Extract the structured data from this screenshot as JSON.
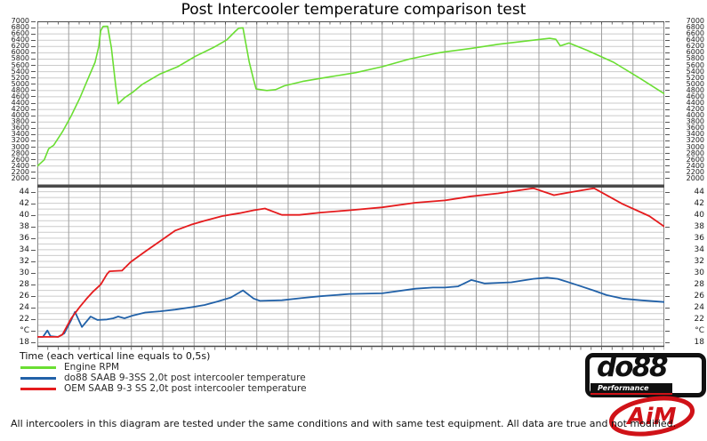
{
  "title": "Post Intercooler temperature comparison test",
  "time_axis_label": "Time (each vertical line equals to 0,5s)",
  "footnote": "All intercoolers in this diagram are tested under the same conditions and with same test equipment. All data are true and not modified.",
  "legend": {
    "items": [
      {
        "label": "Engine RPM",
        "color": "#6ade32"
      },
      {
        "label": "do88 SAAB 9-3SS 2,0t post intercooler temperature",
        "color": "#2161a8"
      },
      {
        "label": "OEM SAAB 9-3 SS 2,0t post intercooler temperature",
        "color": "#e51b1d"
      }
    ]
  },
  "logos": {
    "do88": {
      "text": "do88",
      "subtext": "Performance"
    },
    "aim": {
      "text": "AiM"
    }
  },
  "style": {
    "grid_h_color": "#cbcbcb",
    "grid_v_color": "#9f9f9f",
    "axis_color": "#4a4a4a",
    "border_color": "#888888"
  },
  "chart_data": [
    {
      "type": "line",
      "panel": "top",
      "ylabel": "Engine RPM",
      "x_note": "each vertical gridline = 0,5 s, 20 intervals",
      "y_min": 1800,
      "y_max": 7000,
      "grid_step": 200,
      "v_intervals": 20,
      "tick_values": [
        7000,
        6800,
        6600,
        6400,
        6200,
        6000,
        5800,
        5600,
        5400,
        5200,
        5000,
        4800,
        4600,
        4400,
        4200,
        4000,
        3800,
        3600,
        3400,
        3200,
        3000,
        2800,
        2600,
        2400,
        2200,
        2000
      ],
      "series": [
        {
          "name": "Engine RPM",
          "color": "#6ade32",
          "x_unit": "percent of timeline",
          "points": [
            [
              0,
              2400
            ],
            [
              1.1,
              2600
            ],
            [
              1.8,
              2950
            ],
            [
              2.6,
              3060
            ],
            [
              4,
              3490
            ],
            [
              5.4,
              4000
            ],
            [
              6.8,
              4570
            ],
            [
              8.2,
              5230
            ],
            [
              9.2,
              5700
            ],
            [
              9.8,
              6200
            ],
            [
              10.1,
              6700
            ],
            [
              10.5,
              6840
            ],
            [
              11.2,
              6845
            ],
            [
              11.8,
              6170
            ],
            [
              12.5,
              4950
            ],
            [
              12.9,
              4380
            ],
            [
              13.9,
              4570
            ],
            [
              15.3,
              4760
            ],
            [
              16.7,
              4990
            ],
            [
              19.6,
              5330
            ],
            [
              22.4,
              5560
            ],
            [
              25.2,
              5890
            ],
            [
              28.1,
              6170
            ],
            [
              30.2,
              6410
            ],
            [
              31.6,
              6690
            ],
            [
              32.1,
              6780
            ],
            [
              32.8,
              6795
            ],
            [
              33.8,
              5700
            ],
            [
              34.5,
              5140
            ],
            [
              34.9,
              4850
            ],
            [
              36.6,
              4800
            ],
            [
              38,
              4830
            ],
            [
              39.4,
              4950
            ],
            [
              42.3,
              5090
            ],
            [
              46.5,
              5230
            ],
            [
              50.8,
              5370
            ],
            [
              55,
              5560
            ],
            [
              59.3,
              5800
            ],
            [
              63.5,
              5980
            ],
            [
              65,
              6030
            ],
            [
              69.2,
              6140
            ],
            [
              73.5,
              6270
            ],
            [
              79.1,
              6400
            ],
            [
              81.7,
              6460
            ],
            [
              82.7,
              6430
            ],
            [
              83.4,
              6220
            ],
            [
              84.8,
              6310
            ],
            [
              87.7,
              6080
            ],
            [
              91.9,
              5700
            ],
            [
              96.2,
              5180
            ],
            [
              100,
              4700
            ]
          ]
        }
      ]
    },
    {
      "type": "line",
      "panel": "bottom",
      "ylabel": "Temperature (°C)",
      "x_note": "each vertical gridline = 0,5 s, 20 intervals",
      "y_min": 17.3,
      "y_max": 44.7,
      "grid_step": 1,
      "v_intervals": 20,
      "tick_values": [
        {
          "v": 44,
          "label": "44"
        },
        {
          "v": 42,
          "label": "42"
        },
        {
          "v": 40,
          "label": "40"
        },
        {
          "v": 38,
          "label": "38"
        },
        {
          "v": 36,
          "label": "36"
        },
        {
          "v": 34,
          "label": "34"
        },
        {
          "v": 32,
          "label": "32"
        },
        {
          "v": 30,
          "label": "30"
        },
        {
          "v": 28,
          "label": "28"
        },
        {
          "v": 26,
          "label": "26"
        },
        {
          "v": 24,
          "label": "24"
        },
        {
          "v": 22,
          "label": "22"
        },
        {
          "v": 20,
          "label": "°C"
        },
        {
          "v": 18,
          "label": "18"
        }
      ],
      "series": [
        {
          "name": "do88 SAAB 9-3SS 2,0t post intercooler temperature",
          "color": "#2161a8",
          "points": [
            [
              0,
              19
            ],
            [
              0.9,
              19
            ],
            [
              1.6,
              20.1
            ],
            [
              2.1,
              19.1
            ],
            [
              3.3,
              19
            ],
            [
              4.3,
              19.6
            ],
            [
              5.4,
              21.9
            ],
            [
              6,
              23.3
            ],
            [
              7.1,
              20.7
            ],
            [
              8.5,
              22.5
            ],
            [
              9.6,
              21.9
            ],
            [
              11.1,
              22
            ],
            [
              12.1,
              22.2
            ],
            [
              12.9,
              22.5
            ],
            [
              13.9,
              22.2
            ],
            [
              15.3,
              22.7
            ],
            [
              17.2,
              23.2
            ],
            [
              19.6,
              23.4
            ],
            [
              22,
              23.7
            ],
            [
              24.5,
              24.1
            ],
            [
              26.7,
              24.5
            ],
            [
              28.8,
              25.1
            ],
            [
              30.9,
              25.8
            ],
            [
              32.8,
              27
            ],
            [
              34.5,
              25.6
            ],
            [
              35.5,
              25.2
            ],
            [
              39,
              25.3
            ],
            [
              42.3,
              25.7
            ],
            [
              45.1,
              26
            ],
            [
              49.8,
              26.4
            ],
            [
              55,
              26.5
            ],
            [
              60.3,
              27.3
            ],
            [
              63.1,
              27.5
            ],
            [
              65,
              27.5
            ],
            [
              67.1,
              27.7
            ],
            [
              69.2,
              28.8
            ],
            [
              71.3,
              28.2
            ],
            [
              73.5,
              28.3
            ],
            [
              75.6,
              28.4
            ],
            [
              79.1,
              29
            ],
            [
              81.3,
              29.2
            ],
            [
              83,
              29
            ],
            [
              86.2,
              27.9
            ],
            [
              88.7,
              27
            ],
            [
              90.8,
              26.2
            ],
            [
              93.3,
              25.6
            ],
            [
              96.2,
              25.3
            ],
            [
              100,
              25
            ]
          ]
        },
        {
          "name": "OEM SAAB 9-3 SS 2,0t post intercooler temperature",
          "color": "#e51b1d",
          "points": [
            [
              0,
              19
            ],
            [
              3.3,
              19
            ],
            [
              4,
              19.4
            ],
            [
              5.4,
              22.2
            ],
            [
              6.8,
              24.2
            ],
            [
              7.8,
              25.5
            ],
            [
              8.9,
              26.8
            ],
            [
              10.1,
              28
            ],
            [
              11.1,
              29.8
            ],
            [
              11.5,
              30.3
            ],
            [
              13.5,
              30.4
            ],
            [
              14.9,
              31.9
            ],
            [
              17.2,
              33.7
            ],
            [
              19.6,
              35.5
            ],
            [
              22,
              37.3
            ],
            [
              24.5,
              38.3
            ],
            [
              26.7,
              39
            ],
            [
              29.5,
              39.8
            ],
            [
              32.3,
              40.3
            ],
            [
              34.5,
              40.8
            ],
            [
              36.3,
              41.1
            ],
            [
              39,
              40
            ],
            [
              41.8,
              40
            ],
            [
              45.1,
              40.4
            ],
            [
              49.8,
              40.8
            ],
            [
              55,
              41.3
            ],
            [
              60.3,
              42.1
            ],
            [
              65,
              42.5
            ],
            [
              69.2,
              43.2
            ],
            [
              73.5,
              43.7
            ],
            [
              79.1,
              44.6
            ],
            [
              82.4,
              43.4
            ],
            [
              85.5,
              44
            ],
            [
              88.8,
              44.6
            ],
            [
              93.3,
              41.9
            ],
            [
              97.6,
              39.8
            ],
            [
              100,
              38
            ]
          ]
        }
      ]
    }
  ]
}
